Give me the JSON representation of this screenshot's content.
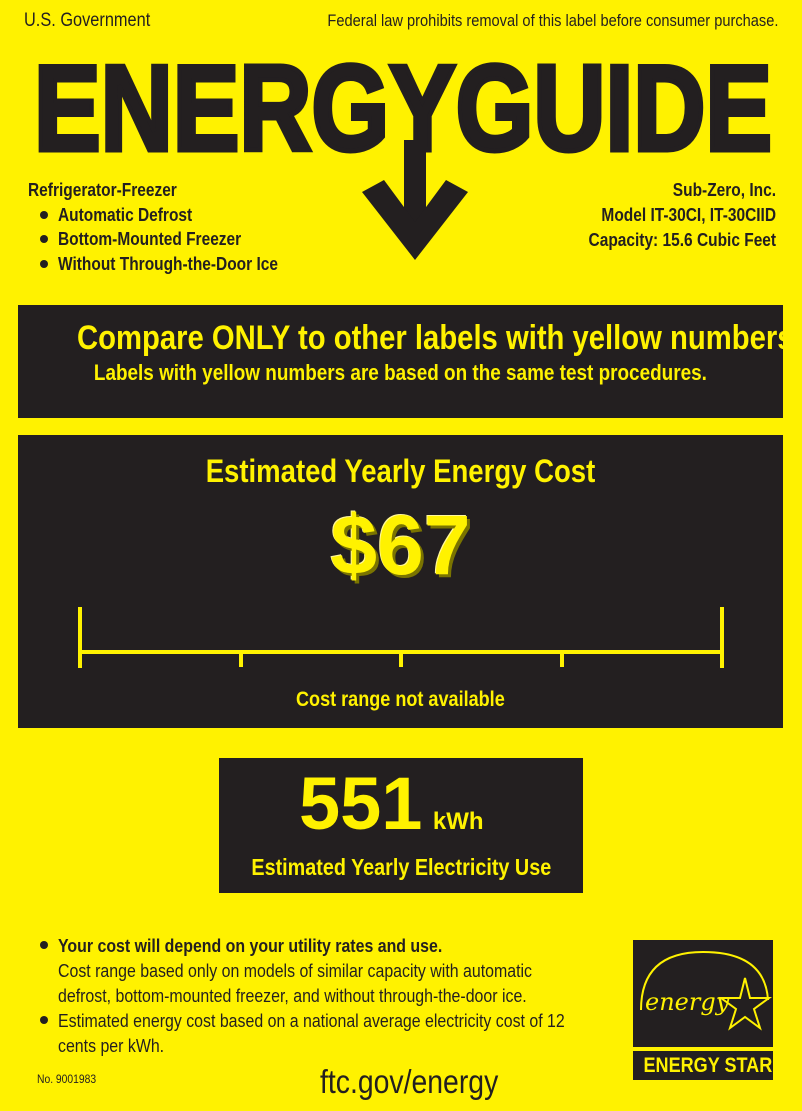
{
  "header": {
    "government": "U.S. Government",
    "notice": "Federal law prohibits removal of this label before consumer purchase.",
    "title": "ENERGYGUIDE"
  },
  "product": {
    "type": "Refrigerator-Freezer",
    "features": [
      "Automatic Defrost",
      "Bottom-Mounted Freezer",
      "Without Through-the-Door Ice"
    ],
    "manufacturer": "Sub-Zero, Inc.",
    "model": "Model IT-30CI, IT-30CIID",
    "capacity": "Capacity: 15.6 Cubic Feet"
  },
  "compare": {
    "headline": "Compare ONLY to other labels with yellow numbers.",
    "subline": "Labels with yellow numbers are based on the same test procedures."
  },
  "cost": {
    "heading": "Estimated Yearly Energy Cost",
    "value": "$67",
    "range_note": "Cost range not available"
  },
  "usage": {
    "value": "551",
    "unit": "kWh",
    "label": "Estimated Yearly Electricity Use"
  },
  "notes": {
    "note1_bold": "Your cost will depend on your utility rates and use.",
    "note1_text": "Cost range based only on models of similar capacity with automatic defrost, bottom-mounted freezer, and without through-the-door ice.",
    "note2": "Estimated energy cost based on a national average electricity cost of 12 cents per kWh."
  },
  "footer": {
    "label_number": "No. 9001983",
    "url": "ftc.gov/energy",
    "energy_star_script": "energy",
    "energy_star_label": "ENERGY STAR"
  },
  "colors": {
    "background": "#fff200",
    "ink": "#231f20"
  }
}
